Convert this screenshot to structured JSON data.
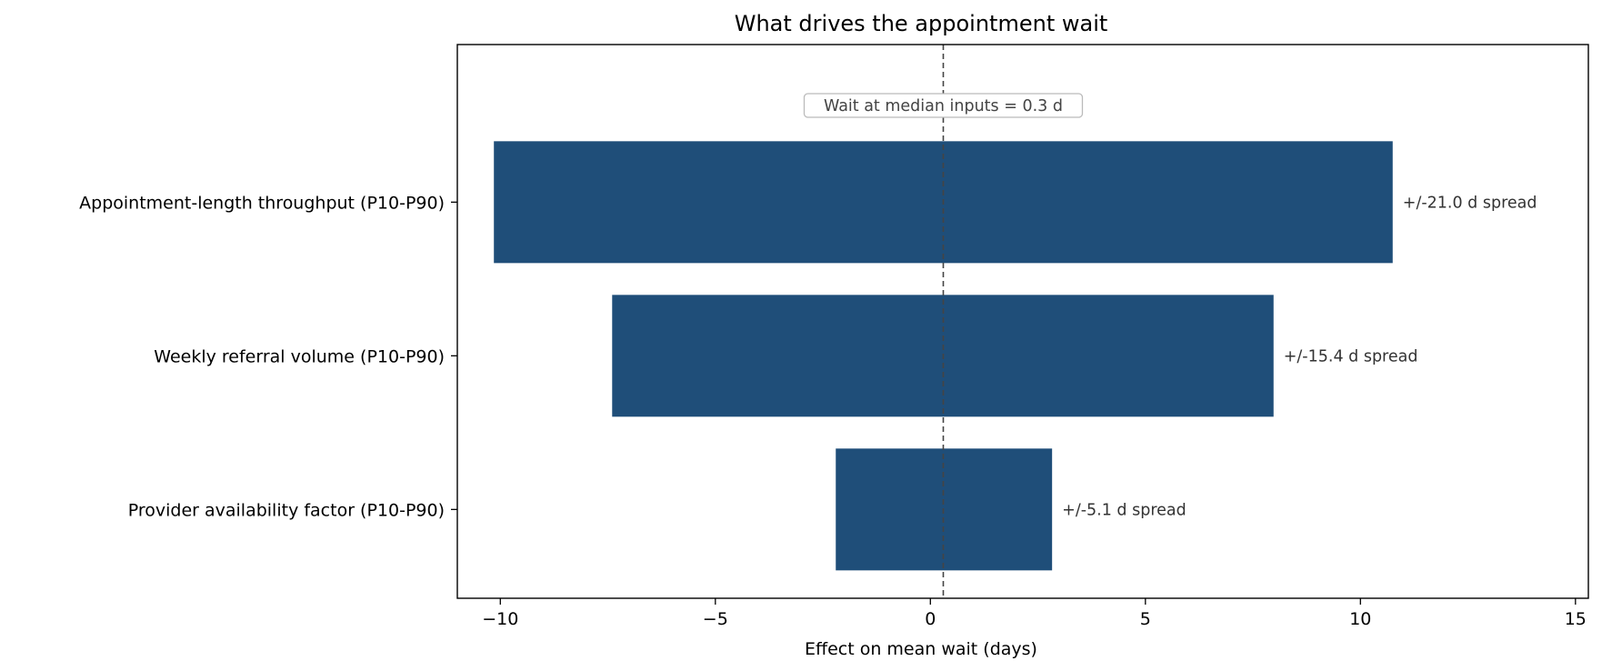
{
  "chart_data": {
    "type": "bar",
    "orientation": "horizontal",
    "title": "What drives the appointment wait",
    "xlabel": "Effect on mean wait (days)",
    "ylabel": "",
    "xlim": [
      -11,
      15.3
    ],
    "xticks": [
      -10,
      -5,
      0,
      5,
      10,
      15
    ],
    "xtick_labels": [
      "−10",
      "−5",
      "0",
      "5",
      "10",
      "15"
    ],
    "baseline": 0.3,
    "baseline_annotation": "Wait at median inputs = 0.3 d",
    "bar_color": "#1f4e79",
    "categories": [
      "Appointment-length throughput (P10-P90)",
      "Weekly referral volume (P10-P90)",
      "Provider availability factor (P10-P90)"
    ],
    "low": [
      -10.15,
      -7.4,
      -2.2
    ],
    "high": [
      10.75,
      7.98,
      2.83
    ],
    "spread_labels": [
      "+/-21.0 d spread",
      "+/-15.4 d spread",
      "+/-5.1 d spread"
    ],
    "grid": false,
    "legend": "none"
  }
}
